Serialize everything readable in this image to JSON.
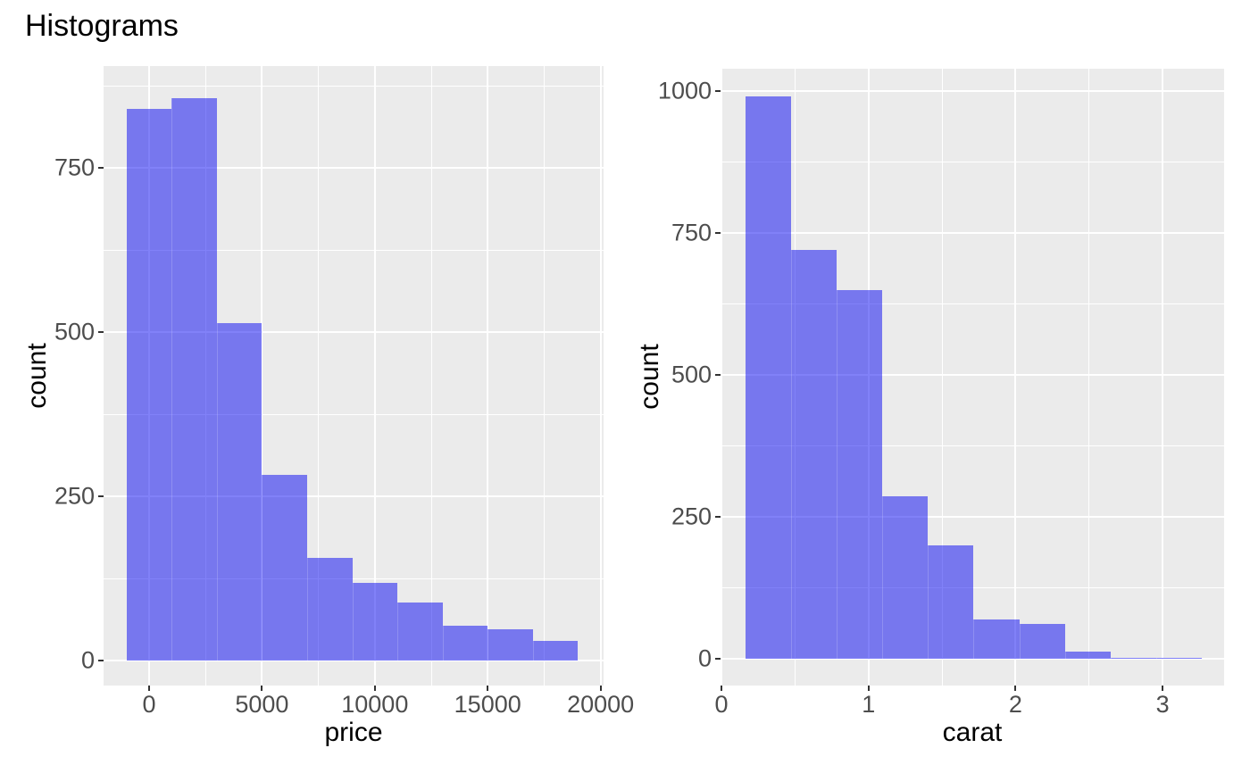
{
  "title": "Histograms",
  "colors": {
    "figure_background": "#FFFFFF",
    "panel_background": "#EBEBEB",
    "gridline": "#FFFFFF",
    "bar_fill": "rgba(13,13,241,0.52)",
    "bar_fill_rendered": "#7777EE",
    "tick_mark": "#333333",
    "tick_label": "#4D4D4D",
    "axis_title": "#000000",
    "title_color": "#000000"
  },
  "chart_data": [
    {
      "type": "bar",
      "subtype": "histogram",
      "xlabel": "price",
      "ylabel": "count",
      "bin_edges": [
        -1000,
        1000,
        3000,
        5000,
        7000,
        9000,
        11000,
        13000,
        15000,
        17000,
        19000
      ],
      "counts": [
        840,
        856,
        514,
        282,
        156,
        118,
        88,
        53,
        47,
        30
      ],
      "x_ticks": [
        0,
        5000,
        10000,
        15000,
        20000
      ],
      "x_minor_ticks": [
        2500,
        7500,
        12500,
        17500
      ],
      "y_ticks": [
        0,
        250,
        500,
        750
      ],
      "y_minor_ticks": [
        125,
        375,
        625,
        875
      ],
      "x_domain": [
        -2017,
        20134
      ],
      "y_domain": [
        -38,
        905
      ],
      "grid": "major+minor white on grey panel",
      "legend": "none"
    },
    {
      "type": "bar",
      "subtype": "histogram",
      "xlabel": "carat",
      "ylabel": "count",
      "bin_edges": [
        0.165,
        0.475,
        0.785,
        1.095,
        1.405,
        1.715,
        2.025,
        2.335,
        2.645,
        2.955,
        3.265
      ],
      "counts": [
        990,
        720,
        650,
        286,
        200,
        70,
        61,
        12,
        2,
        1
      ],
      "x_ticks": [
        0,
        1,
        2,
        3
      ],
      "x_minor_ticks": [
        0.5,
        1.5,
        2.5
      ],
      "y_ticks": [
        0,
        250,
        500,
        750,
        1000
      ],
      "y_minor_ticks": [
        125,
        375,
        625,
        875
      ],
      "x_domain": [
        -0.006,
        3.418
      ],
      "y_domain": [
        -47,
        1039
      ],
      "grid": "major+minor white on grey panel",
      "legend": "none"
    }
  ]
}
